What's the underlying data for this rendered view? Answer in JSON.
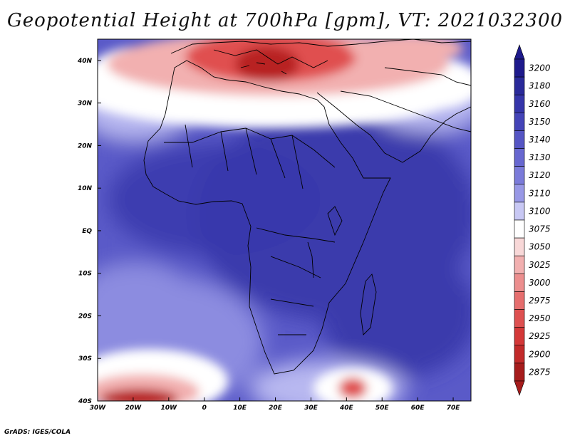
{
  "title": "Geopotential Height at 700hPa [gpm], VT: 2021032300",
  "footer": "GrADS: IGES/COLA",
  "map": {
    "lon_range": [
      -30,
      75
    ],
    "lat_range": [
      -40,
      45
    ],
    "x_ticks": [
      {
        "value": -30,
        "label": "30W"
      },
      {
        "value": -20,
        "label": "20W"
      },
      {
        "value": -10,
        "label": "10W"
      },
      {
        "value": 0,
        "label": "0"
      },
      {
        "value": 10,
        "label": "10E"
      },
      {
        "value": 20,
        "label": "20E"
      },
      {
        "value": 30,
        "label": "30E"
      },
      {
        "value": 40,
        "label": "40E"
      },
      {
        "value": 50,
        "label": "50E"
      },
      {
        "value": 60,
        "label": "60E"
      },
      {
        "value": 70,
        "label": "70E"
      }
    ],
    "y_ticks": [
      {
        "value": 40,
        "label": "40N"
      },
      {
        "value": 30,
        "label": "30N"
      },
      {
        "value": 20,
        "label": "20N"
      },
      {
        "value": 10,
        "label": "10N"
      },
      {
        "value": 0,
        "label": "EQ"
      },
      {
        "value": -10,
        "label": "10S"
      },
      {
        "value": -20,
        "label": "20S"
      },
      {
        "value": -30,
        "label": "30S"
      },
      {
        "value": -40,
        "label": "40S"
      }
    ],
    "colorbar": {
      "levels": [
        {
          "label": "3200",
          "color": "#1e1a8c"
        },
        {
          "label": "3180",
          "color": "#2a2a9a"
        },
        {
          "label": "3160",
          "color": "#3535aa"
        },
        {
          "label": "3150",
          "color": "#4444b8"
        },
        {
          "label": "3140",
          "color": "#5555c4"
        },
        {
          "label": "3130",
          "color": "#6767d0"
        },
        {
          "label": "3120",
          "color": "#7b7bda"
        },
        {
          "label": "3110",
          "color": "#9898e6"
        },
        {
          "label": "3100",
          "color": "#c8c8f4"
        },
        {
          "label": "3075",
          "color": "#ffffff"
        },
        {
          "label": "3050",
          "color": "#f8d8d8"
        },
        {
          "label": "3025",
          "color": "#f2b0b0"
        },
        {
          "label": "3000",
          "color": "#ec8e8e"
        },
        {
          "label": "2975",
          "color": "#e66e6e"
        },
        {
          "label": "2950",
          "color": "#de5050"
        },
        {
          "label": "2925",
          "color": "#d43838"
        },
        {
          "label": "2900",
          "color": "#c22a2a"
        },
        {
          "label": "2875",
          "color": "#a61c1c"
        }
      ]
    },
    "field_colors": {
      "deep_blue": "#3a3aac",
      "mid_blue": "#5a5ac8",
      "light_blue": "#8c8ce0",
      "pale_blue": "#b8b8f0",
      "white": "#ffffff",
      "pink": "#f2b0b0",
      "red": "#e05050",
      "dark_red": "#b82020"
    }
  }
}
